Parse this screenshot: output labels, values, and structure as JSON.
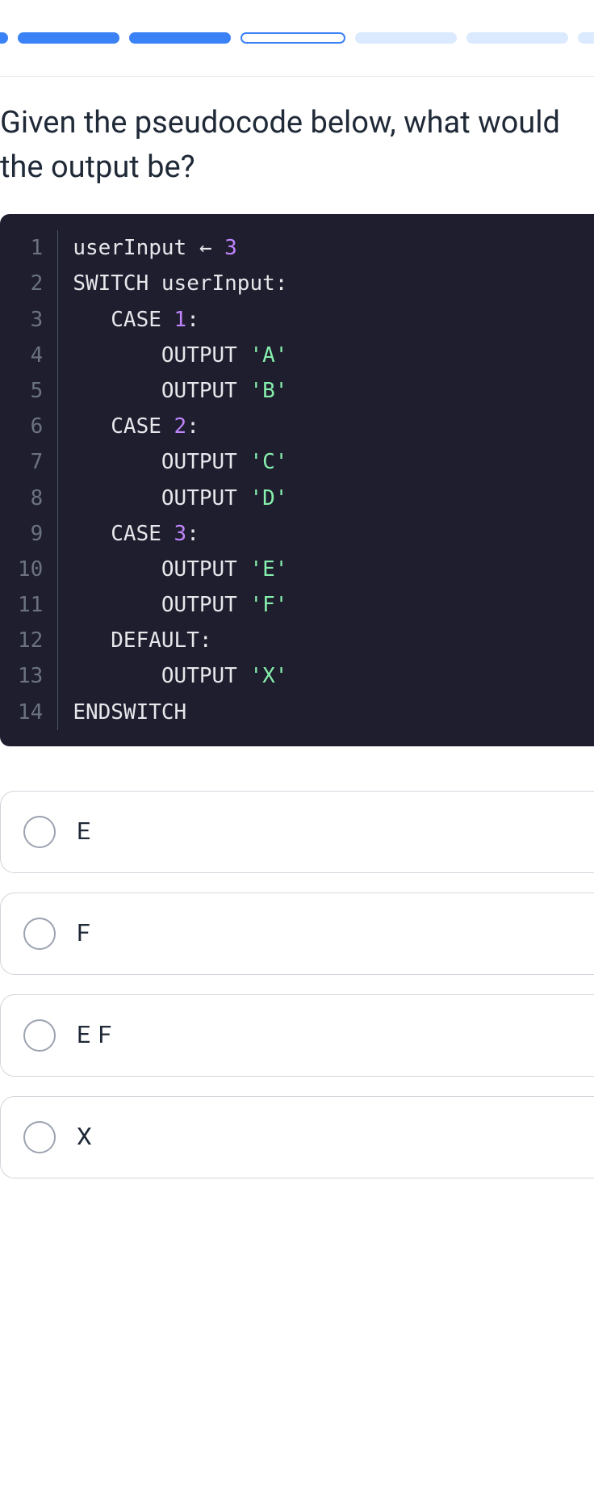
{
  "progress": {
    "segments": [
      {
        "state": "active",
        "cls": "first"
      },
      {
        "state": "active"
      },
      {
        "state": "active"
      },
      {
        "state": "current"
      },
      {
        "state": "inactive"
      },
      {
        "state": "inactive"
      },
      {
        "state": "inactive",
        "cls": "last"
      }
    ],
    "colors": {
      "active": "#3b82f6",
      "current_border": "#3b82f6",
      "inactive": "#dbeafe"
    }
  },
  "question": "Given the pseudocode below, what would the output be?",
  "code": {
    "background": "#1e1e2e",
    "line_number_color": "#6b7280",
    "text_color": "#e5e7eb",
    "number_color": "#c084fc",
    "string_color": "#86efac",
    "fontsize": 26,
    "lines": [
      {
        "n": 1,
        "tokens": [
          {
            "t": "userInput ",
            "c": "id"
          },
          {
            "t": "← ",
            "c": "arrow"
          },
          {
            "t": "3",
            "c": "num"
          }
        ]
      },
      {
        "n": 2,
        "tokens": [
          {
            "t": "SWITCH userInput:",
            "c": "kw"
          }
        ]
      },
      {
        "n": 3,
        "tokens": [
          {
            "t": "   CASE ",
            "c": "kw"
          },
          {
            "t": "1",
            "c": "num"
          },
          {
            "t": ":",
            "c": "kw"
          }
        ]
      },
      {
        "n": 4,
        "tokens": [
          {
            "t": "       OUTPUT ",
            "c": "kw"
          },
          {
            "t": "'A'",
            "c": "str"
          }
        ]
      },
      {
        "n": 5,
        "tokens": [
          {
            "t": "       OUTPUT ",
            "c": "kw"
          },
          {
            "t": "'B'",
            "c": "str"
          }
        ]
      },
      {
        "n": 6,
        "tokens": [
          {
            "t": "   CASE ",
            "c": "kw"
          },
          {
            "t": "2",
            "c": "num"
          },
          {
            "t": ":",
            "c": "kw"
          }
        ]
      },
      {
        "n": 7,
        "tokens": [
          {
            "t": "       OUTPUT ",
            "c": "kw"
          },
          {
            "t": "'C'",
            "c": "str"
          }
        ]
      },
      {
        "n": 8,
        "tokens": [
          {
            "t": "       OUTPUT ",
            "c": "kw"
          },
          {
            "t": "'D'",
            "c": "str"
          }
        ]
      },
      {
        "n": 9,
        "tokens": [
          {
            "t": "   CASE ",
            "c": "kw"
          },
          {
            "t": "3",
            "c": "num"
          },
          {
            "t": ":",
            "c": "kw"
          }
        ]
      },
      {
        "n": 10,
        "tokens": [
          {
            "t": "       OUTPUT ",
            "c": "kw"
          },
          {
            "t": "'E'",
            "c": "str"
          }
        ]
      },
      {
        "n": 11,
        "tokens": [
          {
            "t": "       OUTPUT ",
            "c": "kw"
          },
          {
            "t": "'F'",
            "c": "str"
          }
        ]
      },
      {
        "n": 12,
        "tokens": [
          {
            "t": "   DEFAULT:",
            "c": "kw"
          }
        ]
      },
      {
        "n": 13,
        "tokens": [
          {
            "t": "       OUTPUT ",
            "c": "kw"
          },
          {
            "t": "'X'",
            "c": "str"
          }
        ]
      },
      {
        "n": 14,
        "tokens": [
          {
            "t": "ENDSWITCH",
            "c": "kw"
          }
        ]
      }
    ]
  },
  "options": [
    {
      "label": "E"
    },
    {
      "label": "F"
    },
    {
      "label": "E F"
    },
    {
      "label": "X"
    }
  ],
  "styling": {
    "question_fontsize": 38,
    "option_fontsize": 30,
    "option_border": "#d1d5db",
    "radio_border": "#9ca3af",
    "body_width": 736
  }
}
